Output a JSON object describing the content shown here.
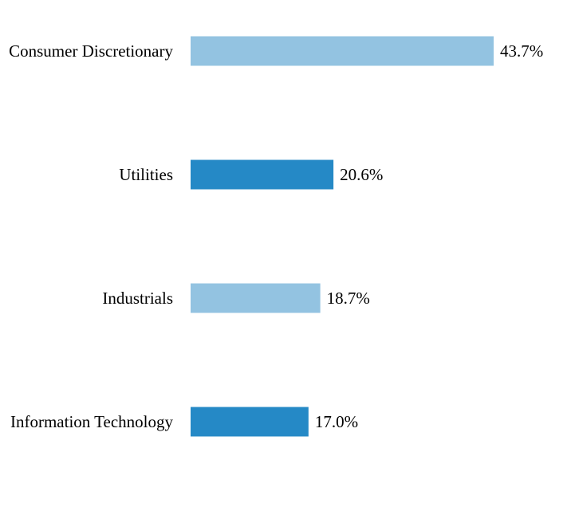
{
  "chart_data": {
    "type": "bar",
    "orientation": "horizontal",
    "title": "",
    "xlabel": "",
    "ylabel": "",
    "categories": [
      "Consumer Discretionary",
      "Utilities",
      "Industrials",
      "Information Technology"
    ],
    "values": [
      43.7,
      20.6,
      18.7,
      17.0
    ],
    "value_labels": [
      "43.7%",
      "20.6%",
      "18.7%",
      "17.0%"
    ],
    "bar_colors": [
      "#93c3e1",
      "#2589c6",
      "#93c3e1",
      "#2589c6"
    ],
    "xlim": [
      0,
      43.7
    ],
    "grid": false,
    "legend": "none"
  }
}
